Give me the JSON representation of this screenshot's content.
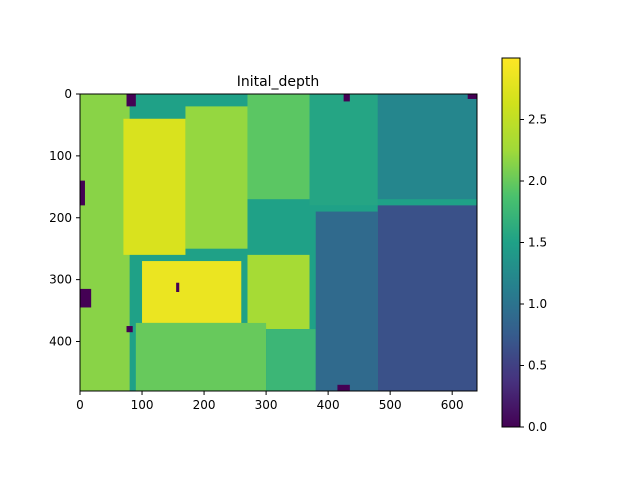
{
  "chart_data": {
    "type": "heatmap",
    "title": "Inital_depth",
    "x_range": [
      0,
      640
    ],
    "y_range": [
      0,
      480
    ],
    "y_inverted": true,
    "x_ticks": [
      "0",
      "100",
      "200",
      "300",
      "400",
      "500",
      "600"
    ],
    "y_ticks": [
      "0",
      "100",
      "200",
      "300",
      "400"
    ],
    "colorbar": {
      "colormap": "viridis",
      "range": [
        0.0,
        3.0
      ],
      "ticks": [
        "0.0",
        "0.5",
        "1.0",
        "1.5",
        "2.0",
        "2.5"
      ]
    },
    "regions": [
      {
        "x": [
          0,
          80
        ],
        "y": [
          0,
          480
        ],
        "value": 2.15
      },
      {
        "x": [
          70,
          170
        ],
        "y": [
          40,
          260
        ],
        "value": 2.7
      },
      {
        "x": [
          100,
          260
        ],
        "y": [
          270,
          370
        ],
        "value": 2.85
      },
      {
        "x": [
          170,
          270
        ],
        "y": [
          20,
          250
        ],
        "value": 2.2
      },
      {
        "x": [
          270,
          370
        ],
        "y": [
          0,
          170
        ],
        "value": 1.95
      },
      {
        "x": [
          370,
          480
        ],
        "y": [
          0,
          180
        ],
        "value": 1.55
      },
      {
        "x": [
          480,
          640
        ],
        "y": [
          0,
          170
        ],
        "value": 1.2
      },
      {
        "x": [
          270,
          370
        ],
        "y": [
          260,
          380
        ],
        "value": 2.3
      },
      {
        "x": [
          90,
          300
        ],
        "y": [
          370,
          480
        ],
        "value": 2.0
      },
      {
        "x": [
          300,
          380
        ],
        "y": [
          380,
          480
        ],
        "value": 1.75
      },
      {
        "x": [
          380,
          480
        ],
        "y": [
          190,
          480
        ],
        "value": 0.9
      },
      {
        "x": [
          480,
          640
        ],
        "y": [
          180,
          480
        ],
        "value": 0.65
      }
    ],
    "zero_value_spots": [
      {
        "x": [
          75,
          90
        ],
        "y": [
          0,
          20
        ]
      },
      {
        "x": [
          425,
          435
        ],
        "y": [
          0,
          12
        ]
      },
      {
        "x": [
          0,
          8
        ],
        "y": [
          140,
          180
        ]
      },
      {
        "x": [
          0,
          18
        ],
        "y": [
          315,
          345
        ]
      },
      {
        "x": [
          75,
          85
        ],
        "y": [
          375,
          385
        ]
      },
      {
        "x": [
          155,
          160
        ],
        "y": [
          305,
          320
        ]
      },
      {
        "x": [
          625,
          640
        ],
        "y": [
          0,
          8
        ]
      },
      {
        "x": [
          415,
          435
        ],
        "y": [
          470,
          480
        ]
      }
    ]
  }
}
